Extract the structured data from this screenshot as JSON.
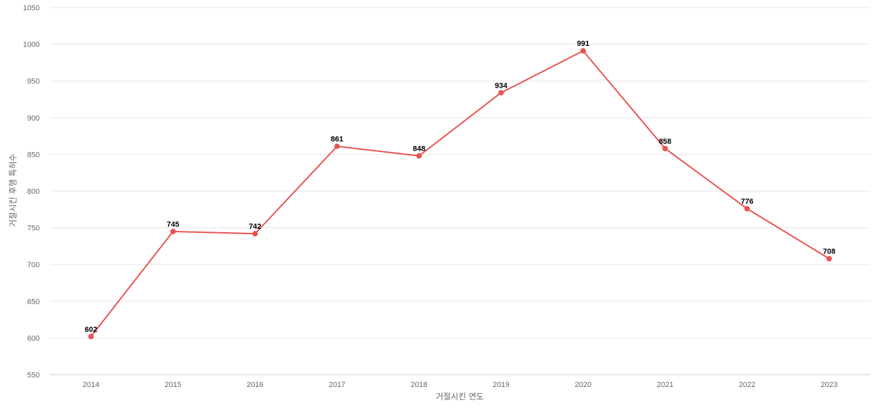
{
  "chart_data": {
    "type": "line",
    "title": "",
    "xlabel": "거절시킨 연도",
    "ylabel": "거절시킨 후행 특허수",
    "categories": [
      "2014",
      "2015",
      "2016",
      "2017",
      "2018",
      "2019",
      "2020",
      "2021",
      "2022",
      "2023"
    ],
    "series": [
      {
        "values": [
          602,
          745,
          742,
          861,
          848,
          934,
          991,
          858,
          776,
          708
        ],
        "color": "#e8534f"
      }
    ],
    "ylim": [
      550,
      1050
    ],
    "yticks": [
      550,
      600,
      650,
      700,
      750,
      800,
      850,
      900,
      950,
      1000,
      1050
    ],
    "grid": true,
    "data_labels": true,
    "legend": "none"
  }
}
